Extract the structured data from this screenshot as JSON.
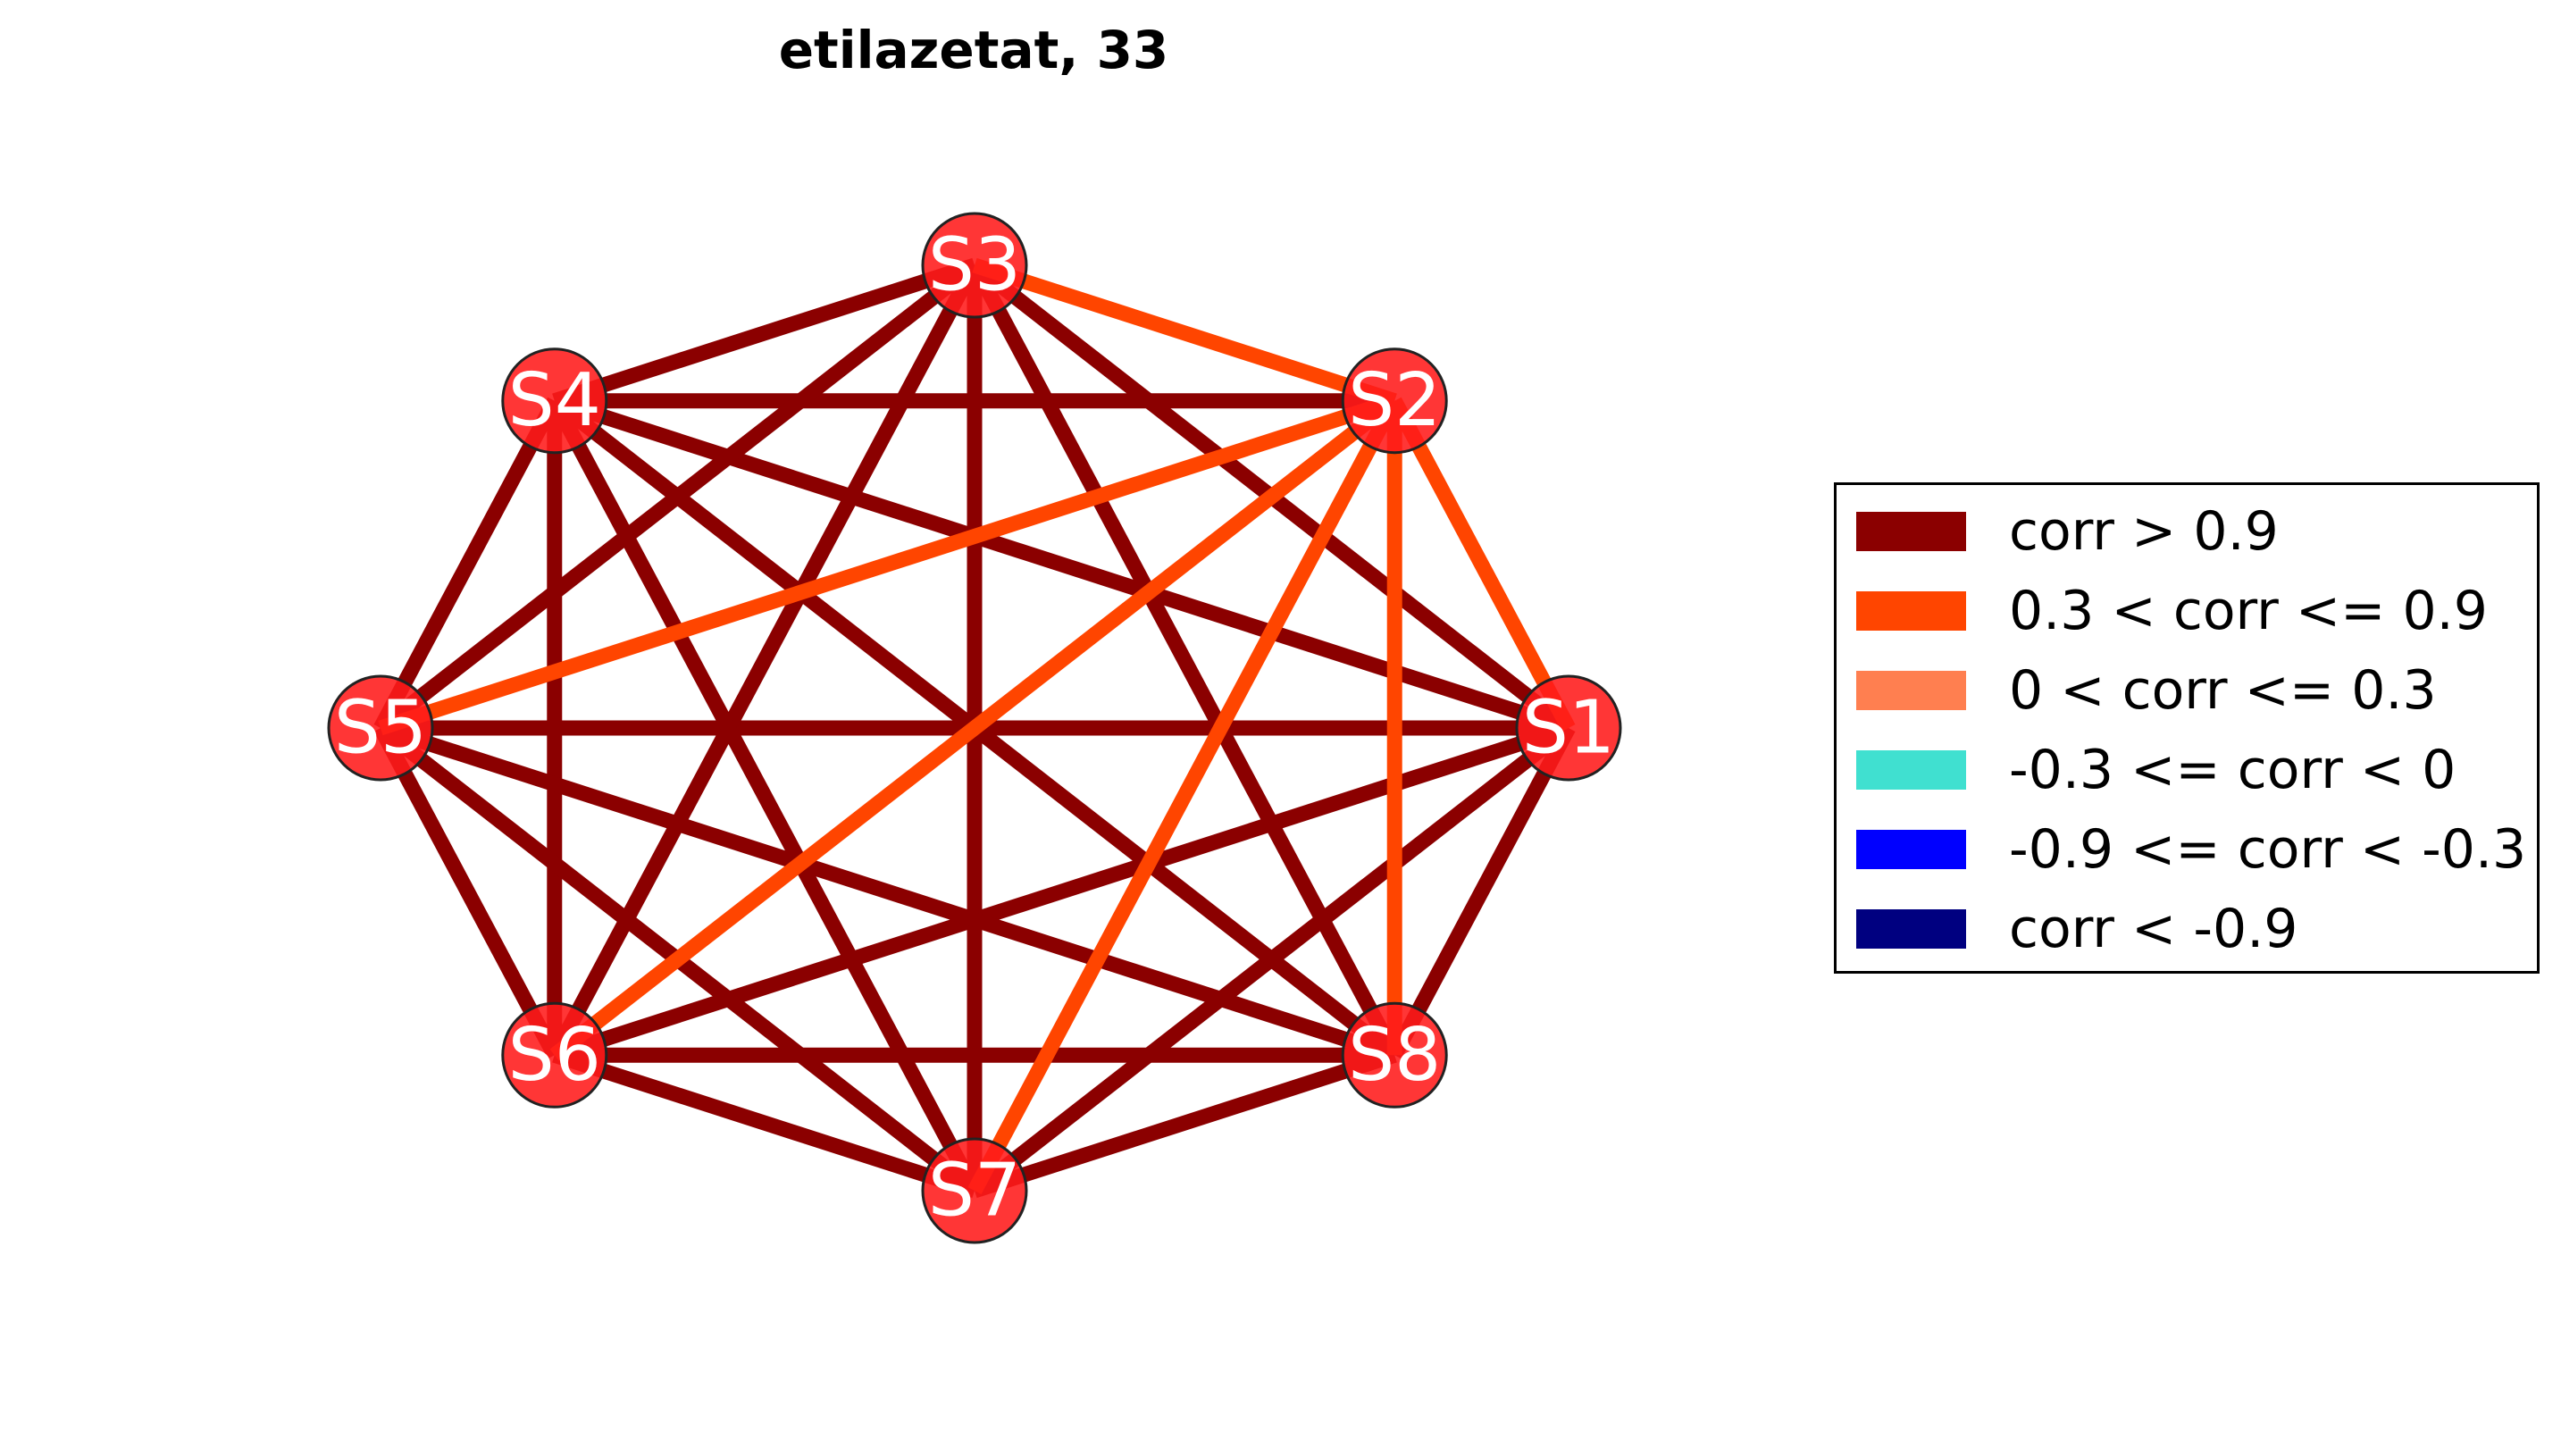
{
  "title": "etilazetat, 33",
  "nodes": [
    {
      "id": "S1",
      "label": "S1"
    },
    {
      "id": "S2",
      "label": "S2"
    },
    {
      "id": "S3",
      "label": "S3"
    },
    {
      "id": "S4",
      "label": "S4"
    },
    {
      "id": "S5",
      "label": "S5"
    },
    {
      "id": "S6",
      "label": "S6"
    },
    {
      "id": "S7",
      "label": "S7"
    },
    {
      "id": "S8",
      "label": "S8"
    }
  ],
  "node_color": "#ff1a1a",
  "edges": [
    {
      "source": "S1",
      "target": "S2",
      "category": "mid_pos"
    },
    {
      "source": "S1",
      "target": "S3",
      "category": "strong_pos"
    },
    {
      "source": "S1",
      "target": "S4",
      "category": "strong_pos"
    },
    {
      "source": "S1",
      "target": "S5",
      "category": "strong_pos"
    },
    {
      "source": "S1",
      "target": "S6",
      "category": "strong_pos"
    },
    {
      "source": "S1",
      "target": "S7",
      "category": "strong_pos"
    },
    {
      "source": "S1",
      "target": "S8",
      "category": "strong_pos"
    },
    {
      "source": "S2",
      "target": "S3",
      "category": "mid_pos"
    },
    {
      "source": "S2",
      "target": "S4",
      "category": "strong_pos"
    },
    {
      "source": "S2",
      "target": "S5",
      "category": "mid_pos"
    },
    {
      "source": "S2",
      "target": "S6",
      "category": "mid_pos"
    },
    {
      "source": "S2",
      "target": "S7",
      "category": "mid_pos"
    },
    {
      "source": "S2",
      "target": "S8",
      "category": "mid_pos"
    },
    {
      "source": "S3",
      "target": "S4",
      "category": "strong_pos"
    },
    {
      "source": "S3",
      "target": "S5",
      "category": "strong_pos"
    },
    {
      "source": "S3",
      "target": "S6",
      "category": "strong_pos"
    },
    {
      "source": "S3",
      "target": "S7",
      "category": "strong_pos"
    },
    {
      "source": "S3",
      "target": "S8",
      "category": "strong_pos"
    },
    {
      "source": "S4",
      "target": "S5",
      "category": "strong_pos"
    },
    {
      "source": "S4",
      "target": "S6",
      "category": "strong_pos"
    },
    {
      "source": "S4",
      "target": "S7",
      "category": "strong_pos"
    },
    {
      "source": "S4",
      "target": "S8",
      "category": "strong_pos"
    },
    {
      "source": "S5",
      "target": "S6",
      "category": "strong_pos"
    },
    {
      "source": "S5",
      "target": "S7",
      "category": "strong_pos"
    },
    {
      "source": "S5",
      "target": "S8",
      "category": "strong_pos"
    },
    {
      "source": "S6",
      "target": "S7",
      "category": "strong_pos"
    },
    {
      "source": "S6",
      "target": "S8",
      "category": "strong_pos"
    },
    {
      "source": "S7",
      "target": "S8",
      "category": "strong_pos"
    }
  ],
  "legend": [
    {
      "key": "strong_pos",
      "label": "corr > 0.9",
      "color": "#8b0000"
    },
    {
      "key": "mid_pos",
      "label": "0.3 < corr <= 0.9",
      "color": "#ff4500"
    },
    {
      "key": "weak_pos",
      "label": "0 < corr <= 0.3",
      "color": "#ff7f50"
    },
    {
      "key": "weak_neg",
      "label": "-0.3 <= corr < 0",
      "color": "#40e0d0"
    },
    {
      "key": "mid_neg",
      "label": "-0.9 <= corr < -0.3",
      "color": "#0000ff"
    },
    {
      "key": "strong_neg",
      "label": "corr < -0.9",
      "color": "#000080"
    }
  ]
}
